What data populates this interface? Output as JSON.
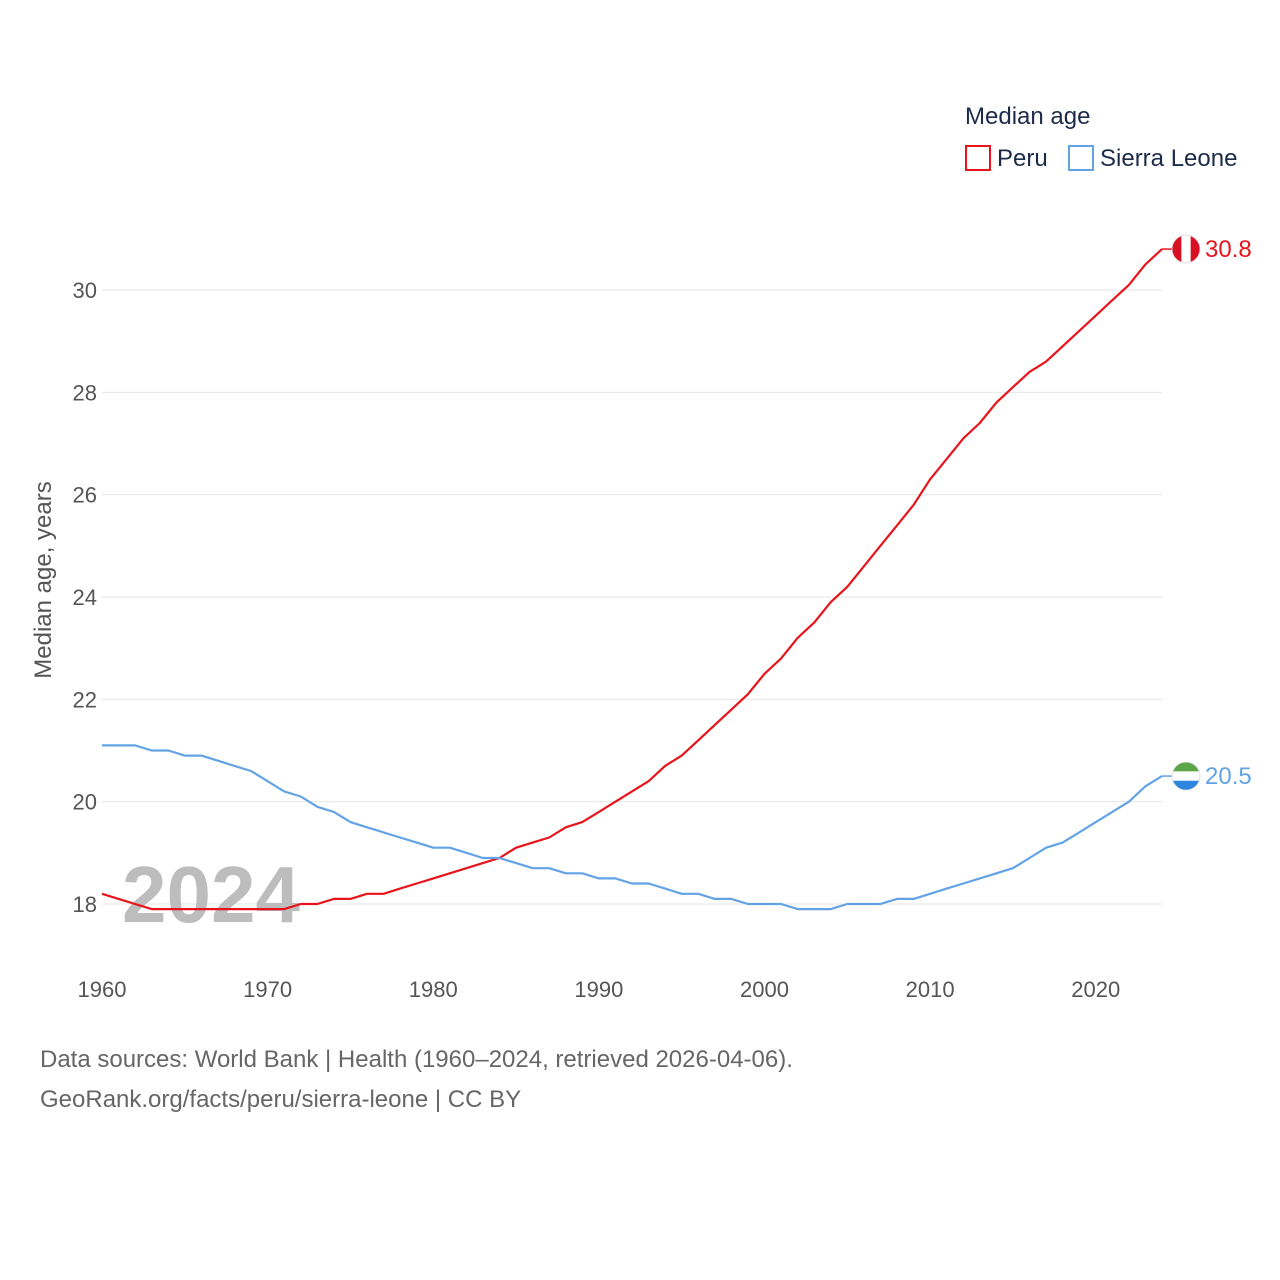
{
  "chart_data": {
    "type": "line",
    "title": "Median age",
    "ylabel": "Median age, years",
    "xlabel": "",
    "xlim": [
      1960,
      2024
    ],
    "ylim": [
      17,
      31.5
    ],
    "x_ticks": [
      1960,
      1970,
      1980,
      1990,
      2000,
      2010,
      2020
    ],
    "y_ticks": [
      18,
      20,
      22,
      24,
      26,
      28,
      30
    ],
    "grid": true,
    "legend_position": "top-right",
    "watermark_year": "2024",
    "x": [
      1960,
      1961,
      1962,
      1963,
      1964,
      1965,
      1966,
      1967,
      1968,
      1969,
      1970,
      1971,
      1972,
      1973,
      1974,
      1975,
      1976,
      1977,
      1978,
      1979,
      1980,
      1981,
      1982,
      1983,
      1984,
      1985,
      1986,
      1987,
      1988,
      1989,
      1990,
      1991,
      1992,
      1993,
      1994,
      1995,
      1996,
      1997,
      1998,
      1999,
      2000,
      2001,
      2002,
      2003,
      2004,
      2005,
      2006,
      2007,
      2008,
      2009,
      2010,
      2011,
      2012,
      2013,
      2014,
      2015,
      2016,
      2017,
      2018,
      2019,
      2020,
      2021,
      2022,
      2023,
      2024
    ],
    "series": [
      {
        "name": "Peru",
        "color": "#e8141b",
        "end_label": "30.8",
        "values": [
          18.2,
          18.1,
          18.0,
          17.9,
          17.9,
          17.9,
          17.9,
          17.9,
          17.9,
          17.9,
          17.9,
          17.9,
          18.0,
          18.0,
          18.1,
          18.1,
          18.2,
          18.2,
          18.3,
          18.4,
          18.5,
          18.6,
          18.7,
          18.8,
          18.9,
          19.1,
          19.2,
          19.3,
          19.5,
          19.6,
          19.8,
          20.0,
          20.2,
          20.4,
          20.7,
          20.9,
          21.2,
          21.5,
          21.8,
          22.1,
          22.5,
          22.8,
          23.2,
          23.5,
          23.9,
          24.2,
          24.6,
          25.0,
          25.4,
          25.8,
          26.3,
          26.7,
          27.1,
          27.4,
          27.8,
          28.1,
          28.4,
          28.6,
          28.9,
          29.2,
          29.5,
          29.8,
          30.1,
          30.5,
          30.8
        ]
      },
      {
        "name": "Sierra Leone",
        "color": "#62a3e5",
        "end_label": "20.5",
        "values": [
          21.1,
          21.1,
          21.1,
          21.0,
          21.0,
          20.9,
          20.9,
          20.8,
          20.7,
          20.6,
          20.4,
          20.2,
          20.1,
          19.9,
          19.8,
          19.6,
          19.5,
          19.4,
          19.3,
          19.2,
          19.1,
          19.1,
          19.0,
          18.9,
          18.9,
          18.8,
          18.7,
          18.7,
          18.6,
          18.6,
          18.5,
          18.5,
          18.4,
          18.4,
          18.3,
          18.2,
          18.2,
          18.1,
          18.1,
          18.0,
          18.0,
          18.0,
          17.9,
          17.9,
          17.9,
          18.0,
          18.0,
          18.0,
          18.1,
          18.1,
          18.2,
          18.3,
          18.4,
          18.5,
          18.6,
          18.7,
          18.9,
          19.1,
          19.2,
          19.4,
          19.6,
          19.8,
          20.0,
          20.3,
          20.5
        ]
      }
    ]
  },
  "source": {
    "line1": "Data sources: World Bank | Health (1960–2024, retrieved 2026-04-06).",
    "line2": "GeoRank.org/facts/peru/sierra-leone | CC BY"
  },
  "colors": {
    "grid": "#e6e6e6",
    "peru_flag_red": "#d91023",
    "sl_flag_green": "#5ba646",
    "sl_flag_blue": "#2e86de"
  }
}
